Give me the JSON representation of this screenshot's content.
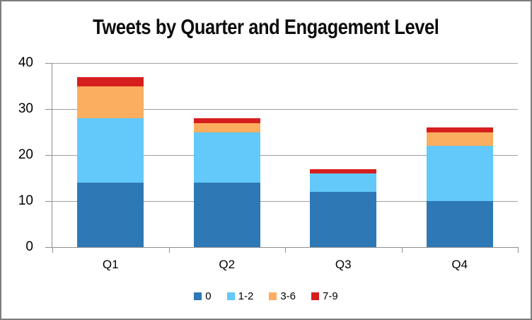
{
  "frame": {
    "border_color": "#7d7d7d",
    "background": "#ffffff"
  },
  "chart_data": {
    "type": "bar",
    "stacked": true,
    "title": "Tweets by Quarter and Engagement Level",
    "categories": [
      "Q1",
      "Q2",
      "Q3",
      "Q4"
    ],
    "series": [
      {
        "name": "0",
        "color": "#2e79b5",
        "values": [
          14,
          14,
          12,
          10
        ]
      },
      {
        "name": "1-2",
        "color": "#63c8fa",
        "values": [
          14,
          11,
          4,
          12
        ]
      },
      {
        "name": "3-6",
        "color": "#fbad60",
        "values": [
          7,
          2,
          0,
          3
        ]
      },
      {
        "name": "7-9",
        "color": "#d61e1e",
        "values": [
          2,
          1,
          1,
          1
        ]
      }
    ],
    "ylim": [
      0,
      40
    ],
    "yticks": [
      0,
      10,
      20,
      30,
      40
    ],
    "xlabel": "",
    "ylabel": "",
    "grid": "horizontal",
    "grid_color": "#a0a0a0",
    "axis_color": "#8e8e8e",
    "text_color": "#000000",
    "legend_position": "bottom"
  }
}
